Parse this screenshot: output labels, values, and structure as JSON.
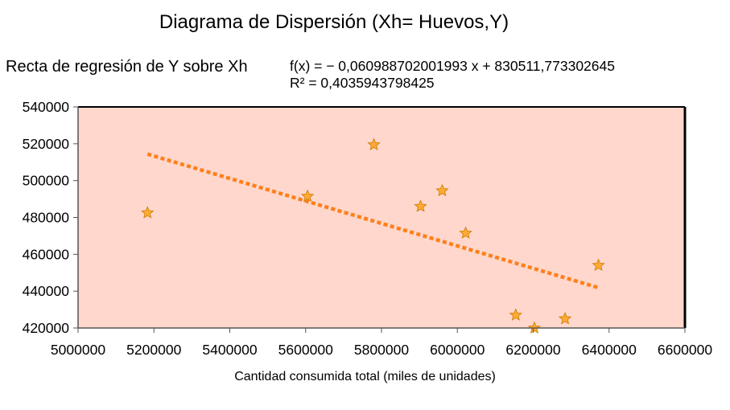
{
  "chart_data": {
    "type": "scatter",
    "title": "Diagrama de Dispersión (Xh= Huevos,Y)",
    "xlabel": "Cantidad consumida total (miles de unidades)",
    "ylabel": "",
    "xlim": [
      5000000,
      6600000
    ],
    "ylim": [
      420000,
      540000
    ],
    "x_ticks": [
      5000000,
      5200000,
      5400000,
      5600000,
      5800000,
      6000000,
      6200000,
      6400000,
      6600000
    ],
    "y_ticks": [
      420000,
      440000,
      460000,
      480000,
      500000,
      520000,
      540000
    ],
    "grid": false,
    "plot_background": "#ffd7cc",
    "marker_color": "#ffaa33",
    "trend_color": "#ff7f1a",
    "series": [
      {
        "x": [
          5183000,
          5605000,
          5780000,
          5903000,
          5960000,
          6022000,
          6154000,
          6203000,
          6284000,
          6372000
        ],
        "y": [
          482500,
          491500,
          519500,
          486000,
          494500,
          471500,
          427000,
          420000,
          425000,
          454000
        ]
      }
    ],
    "trendline": {
      "label": "Recta de regresión de Y sobre Xh",
      "equation": "f(x) = − 0,060988702001993 x + 830511,773302645",
      "r_squared": "R² = 0,4035943798425",
      "slope": -0.060988702001993,
      "intercept": 830511.773302645,
      "x_range": [
        5183000,
        6372000
      ]
    }
  }
}
